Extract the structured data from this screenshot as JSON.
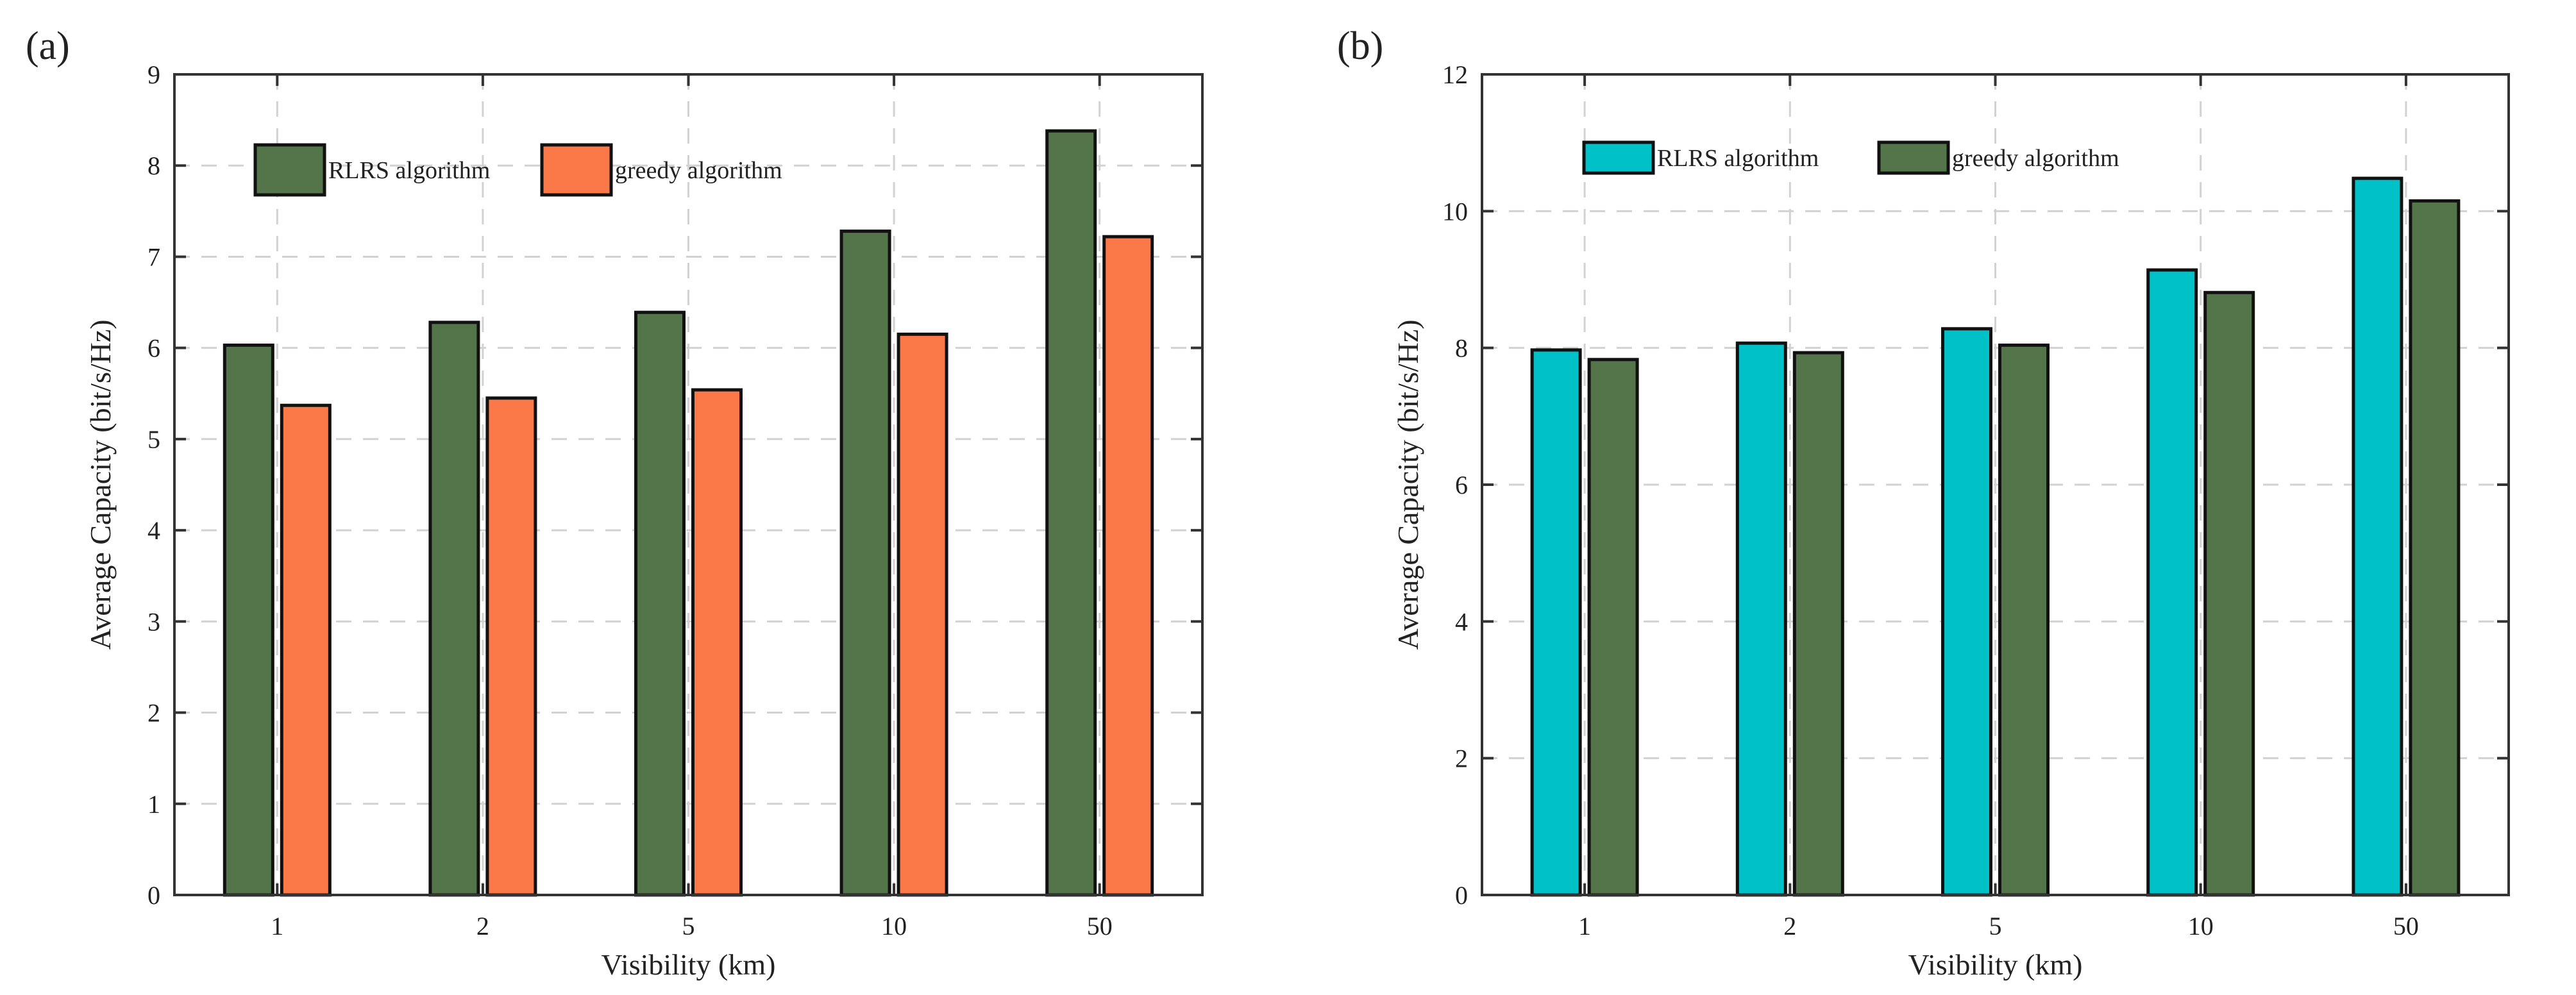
{
  "chart_data": [
    {
      "panel": "(a)",
      "type": "bar",
      "title": "",
      "xlabel": "Visibility (km)",
      "ylabel": "Average Capacity (bit/s/Hz)",
      "ylim": [
        0,
        9
      ],
      "yticks": [
        0,
        1,
        2,
        3,
        4,
        5,
        6,
        7,
        8,
        9
      ],
      "grid": true,
      "legend_position": "top-left",
      "categories": [
        "1",
        "2",
        "5",
        "10",
        "50"
      ],
      "series": [
        {
          "name": "RLRS algorithm",
          "color": "#547549",
          "values": [
            6.03,
            6.28,
            6.39,
            7.28,
            8.38
          ]
        },
        {
          "name": "greedy algorithm",
          "color": "#fb7848",
          "values": [
            5.37,
            5.45,
            5.54,
            6.15,
            7.22
          ]
        }
      ]
    },
    {
      "panel": "(b)",
      "type": "bar",
      "title": "",
      "xlabel": "Visibility (km)",
      "ylabel": "Average Capacity (bit/s/Hz)",
      "ylim": [
        0,
        12
      ],
      "yticks": [
        0,
        2,
        4,
        6,
        8,
        10,
        12
      ],
      "grid": true,
      "legend_position": "top-left",
      "categories": [
        "1",
        "2",
        "5",
        "10",
        "50"
      ],
      "series": [
        {
          "name": "RLRS  algorithm",
          "color": "#00c1c8",
          "values": [
            7.97,
            8.07,
            8.28,
            9.14,
            10.48
          ]
        },
        {
          "name": "greedy algorithm",
          "color": "#547549",
          "values": [
            7.83,
            7.93,
            8.04,
            8.81,
            10.15
          ]
        }
      ]
    }
  ]
}
